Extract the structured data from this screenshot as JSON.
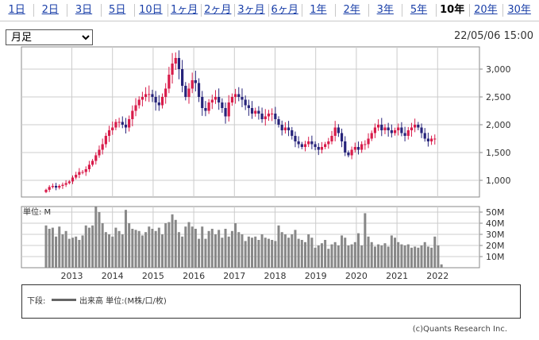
{
  "tabs": [
    {
      "label": "1日",
      "active": false
    },
    {
      "label": "2日",
      "active": false
    },
    {
      "label": "3日",
      "active": false
    },
    {
      "label": "5日",
      "active": false
    },
    {
      "label": "10日",
      "active": false
    },
    {
      "label": "1ヶ月",
      "active": false
    },
    {
      "label": "2ヶ月",
      "active": false
    },
    {
      "label": "3ヶ月",
      "active": false
    },
    {
      "label": "6ヶ月",
      "active": false
    },
    {
      "label": "1年",
      "active": false
    },
    {
      "label": "2年",
      "active": false
    },
    {
      "label": "3年",
      "active": false
    },
    {
      "label": "5年",
      "active": false
    },
    {
      "label": "10年",
      "active": true
    },
    {
      "label": "20年",
      "active": false
    },
    {
      "label": "30年",
      "active": false
    }
  ],
  "period_select": {
    "value": "月足"
  },
  "timestamp": "22/05/06 15:00",
  "legend": {
    "prefix": "下段:",
    "series_label": "出来高 単位:(M株/口/枚)",
    "swatch_color": "#666666"
  },
  "copyright": "(c)Quants Research Inc.",
  "colors": {
    "up": "#d81b4a",
    "down": "#26237a",
    "volume": "#888888",
    "grid": "#cccccc"
  },
  "chart_data": [
    {
      "type": "candlestick",
      "interval": "monthly",
      "x_start": "2012-06",
      "x_tick_labels": [
        "2013",
        "2014",
        "2015",
        "2016",
        "2017",
        "2018",
        "2019",
        "2020",
        "2021",
        "2022"
      ],
      "y_tick_labels": [
        "1,000",
        "1,500",
        "2,000",
        "2,500",
        "3,000"
      ],
      "ylim": [
        700,
        3400
      ],
      "grid": true,
      "close_values": [
        830,
        880,
        900,
        870,
        900,
        920,
        950,
        980,
        1050,
        1100,
        1150,
        1150,
        1200,
        1280,
        1350,
        1450,
        1550,
        1650,
        1800,
        1900,
        1950,
        2050,
        2050,
        2000,
        1950,
        2100,
        2250,
        2350,
        2450,
        2500,
        2550,
        2550,
        2500,
        2400,
        2350,
        2500,
        2650,
        2900,
        3100,
        3200,
        3000,
        2700,
        2500,
        2650,
        2800,
        2750,
        2500,
        2300,
        2250,
        2400,
        2450,
        2500,
        2400,
        2300,
        2150,
        2400,
        2500,
        2550,
        2500,
        2450,
        2350,
        2300,
        2200,
        2250,
        2200,
        2100,
        2150,
        2200,
        2200,
        2100,
        2000,
        1900,
        1950,
        1900,
        1800,
        1700,
        1650,
        1600,
        1650,
        1700,
        1650,
        1600,
        1550,
        1600,
        1650,
        1700,
        1800,
        1950,
        1850,
        1700,
        1500,
        1450,
        1550,
        1600,
        1550,
        1650,
        1650,
        1750,
        1850,
        1950,
        2000,
        1900,
        1950,
        1900,
        1850,
        1900,
        1950,
        1850,
        1800,
        1900,
        1950,
        2000,
        1950,
        1850,
        1750,
        1700,
        1750,
        1750
      ],
      "volume_ylim": [
        0,
        55
      ],
      "volume_tick_labels": [
        "10M",
        "20M",
        "30M",
        "40M",
        "50M"
      ],
      "volume_unit_label": "単位: M",
      "volume_values": [
        38,
        35,
        36,
        28,
        37,
        30,
        33,
        26,
        27,
        28,
        25,
        29,
        38,
        36,
        38,
        55,
        50,
        40,
        32,
        30,
        28,
        36,
        33,
        30,
        52,
        40,
        35,
        34,
        33,
        29,
        32,
        37,
        35,
        33,
        36,
        30,
        40,
        41,
        48,
        43,
        32,
        28,
        37,
        41,
        37,
        35,
        26,
        37,
        26,
        33,
        35,
        30,
        34,
        27,
        35,
        28,
        33,
        40,
        32,
        30,
        24,
        28,
        27,
        28,
        25,
        30,
        27,
        26,
        25,
        24,
        38,
        32,
        30,
        27,
        30,
        34,
        26,
        25,
        23,
        30,
        27,
        18,
        20,
        22,
        25,
        17,
        21,
        23,
        20,
        29,
        27,
        20,
        21,
        23,
        31,
        20,
        49,
        28,
        23,
        19,
        21,
        20,
        22,
        19,
        29,
        27,
        23,
        21,
        20,
        21,
        18,
        19,
        18,
        20,
        23,
        19,
        18,
        28,
        20,
        3
      ]
    }
  ]
}
